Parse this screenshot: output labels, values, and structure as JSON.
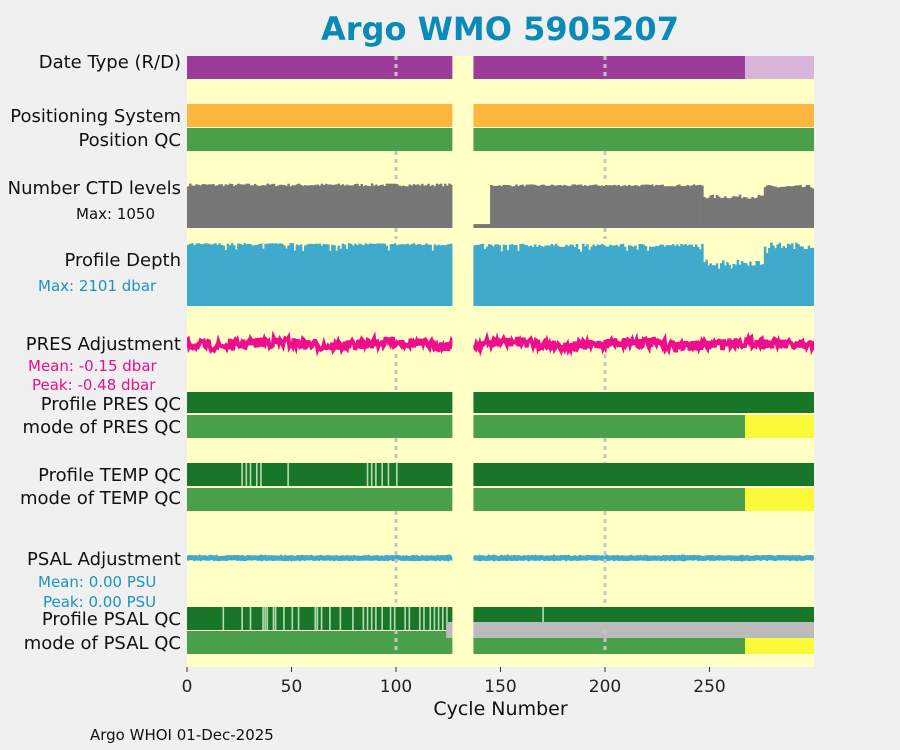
{
  "title": "Argo WMO 5905207",
  "footer": "Argo WHOI 01-Dec-2025",
  "colors": {
    "title": "#0a8ab8",
    "background": "#ffffc6",
    "purple": "#9b3c9b",
    "light_purple": "#d8b4d8",
    "orange": "#fdb73f",
    "green": "#4a9f4a",
    "dark_green": "#187628",
    "pale_green": "#b8dcb0",
    "gray": "#777777",
    "light_gray": "#bbbbbb",
    "blue": "#40aacc",
    "magenta": "#ef0d8d",
    "yellow": "#fafa3a",
    "depth_label": "#1a94c0",
    "pres_label": "#e8108c",
    "psal_label": "#1a94c0"
  },
  "chart_data": {
    "type": "timeline",
    "xlabel": "Cycle Number",
    "xlim": [
      0,
      300
    ],
    "xticks": [
      0,
      50,
      100,
      150,
      200,
      250
    ],
    "gap_cycles": [
      127,
      137
    ],
    "realtime_from_cycle": 267,
    "rows": [
      {
        "name": "Date Type (R/D)",
        "kind": "mode",
        "delayed": "purple",
        "realtime": "light_purple"
      },
      {
        "name": "Positioning System",
        "kind": "band",
        "color": "orange"
      },
      {
        "name": "Position QC",
        "kind": "band",
        "color": "green"
      },
      {
        "name": "Number CTD levels",
        "kind": "bars",
        "color": "gray",
        "max_label": "Max: 1050",
        "max": 1050
      },
      {
        "name": "Profile Depth",
        "kind": "bars",
        "color": "blue",
        "max_label": "Max: 2101 dbar",
        "max": 2101
      },
      {
        "name": "PRES Adjustment",
        "kind": "line",
        "color": "magenta",
        "mean_label": "Mean: -0.15 dbar",
        "peak_label": "Peak: -0.48 dbar",
        "mean": -0.15,
        "peak": -0.48
      },
      {
        "name": "Profile PRES QC",
        "kind": "band",
        "color": "dark_green"
      },
      {
        "name": "mode of PRES QC",
        "kind": "mode",
        "delayed": "green",
        "realtime": "yellow"
      },
      {
        "name": "Profile TEMP QC",
        "kind": "band",
        "color": "dark_green",
        "flagged_cycles": [
          26,
          28,
          30,
          33,
          35,
          48,
          86,
          88,
          90,
          93,
          96,
          100
        ]
      },
      {
        "name": "mode of TEMP QC",
        "kind": "mode",
        "delayed": "green",
        "realtime": "yellow"
      },
      {
        "name": "PSAL Adjustment",
        "kind": "line",
        "color": "blue",
        "mean_label": "Mean: 0.00 PSU",
        "peak_label": "Peak: 0.00 PSU",
        "mean": 0.0,
        "peak": 0.0
      },
      {
        "name": "Profile PSAL QC",
        "kind": "band",
        "color": "dark_green",
        "flagged_cycles": [
          17,
          26,
          30,
          36,
          37,
          38,
          41,
          42,
          46,
          50,
          53,
          61,
          62,
          64,
          68,
          73,
          79,
          84,
          86,
          88,
          90,
          93,
          97,
          99,
          104,
          106,
          111,
          113,
          116,
          118,
          120,
          122,
          124,
          170
        ]
      },
      {
        "name": "mode of PSAL QC",
        "kind": "mode",
        "delayed": "green",
        "realtime": "yellow"
      }
    ],
    "psal_gray_cycles": [
      [
        124,
        127
      ],
      [
        137,
        300
      ]
    ],
    "ctd_levels": {
      "seg1": 0.88,
      "seg2_start": 0.85,
      "seg3": 0.6,
      "seg3_cycle": 247
    },
    "profile_depth": {
      "seg1": 0.97,
      "seg3": 0.6
    }
  }
}
